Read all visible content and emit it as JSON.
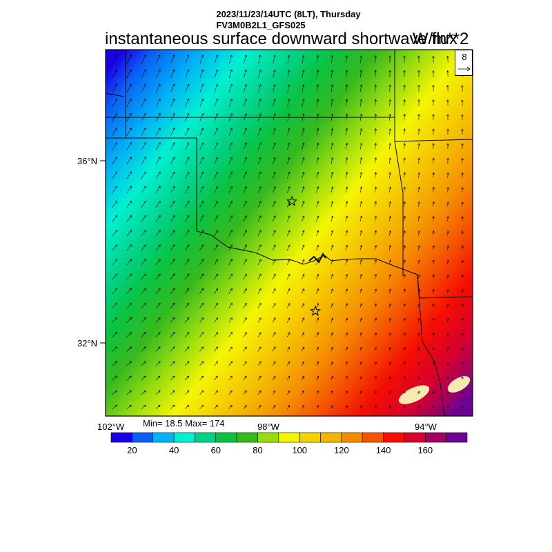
{
  "header": {
    "datetime": "2023/11/23/14UTC (8LT), Thursday",
    "model": "FV3M0B2L1_GFS025",
    "field": "instantaneous surface downward shortwave flux",
    "units": "W/m**2"
  },
  "stats": {
    "text": "Min= 18.5 Max= 174"
  },
  "map": {
    "lat_labels": [
      "36°N",
      "32°N"
    ],
    "lon_labels": [
      "102°W",
      "98°W",
      "94°W"
    ],
    "markers": [
      {
        "type": "star-icon"
      },
      {
        "type": "star-icon"
      }
    ],
    "wind_reference_label": "8"
  },
  "colorbar": {
    "colors": [
      "#1a00e6",
      "#0a5ff5",
      "#00b4f5",
      "#00f0d2",
      "#00d287",
      "#0ac341",
      "#37b91e",
      "#96dc0f",
      "#f5f500",
      "#f5d200",
      "#f5b400",
      "#f58c00",
      "#f55500",
      "#f50f00",
      "#d7002d",
      "#a0005f",
      "#6e0096"
    ],
    "tick_labels": [
      "20",
      "40",
      "60",
      "80",
      "100",
      "120",
      "140",
      "160"
    ]
  }
}
